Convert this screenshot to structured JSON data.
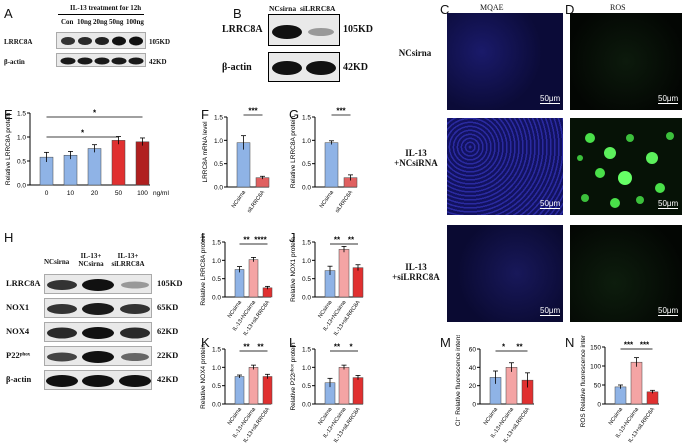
{
  "panels": {
    "A": "A",
    "B": "B",
    "C": "C",
    "D": "D",
    "E": "E",
    "F": "F",
    "G": "G",
    "H": "H",
    "I": "I",
    "J": "J",
    "K": "K",
    "L": "L",
    "M": "M",
    "N": "N"
  },
  "panelA": {
    "title": "IL-13 treatment for 12h",
    "lanes": [
      "Con",
      "10ng",
      "20ng",
      "50ng",
      "100ng"
    ],
    "rows": [
      {
        "name": "LRRC8A",
        "kd": "105KD"
      },
      {
        "name": "β-actin",
        "kd": "42KD"
      }
    ]
  },
  "panelB": {
    "lanes": [
      "NCsirna",
      "siLRRC8A"
    ],
    "rows": [
      {
        "name": "LRRC8A",
        "kd": "105KD"
      },
      {
        "name": "β-actin",
        "kd": "42KD"
      }
    ]
  },
  "panelCD": {
    "col_headers": [
      "MQAE",
      "ROS"
    ],
    "row_labels": [
      [
        "NCsirna"
      ],
      [
        "IL-13",
        "+NCsiRNA"
      ],
      [
        "IL-13",
        "+siLRRC8A"
      ]
    ],
    "scale": "50μm"
  },
  "panelH": {
    "lanes": [
      [
        "NCsirna"
      ],
      [
        "IL-13+",
        "NCsirna"
      ],
      [
        "IL-13+",
        "siLRRC8A"
      ]
    ],
    "rows": [
      {
        "name": "LRRC8A",
        "kd": "105KD"
      },
      {
        "name": "NOX1",
        "kd": "65KD"
      },
      {
        "name": "NOX4",
        "kd": "62KD"
      },
      {
        "name": "P22ᵖʰᵒˣ",
        "kd": "22KD"
      },
      {
        "name": "β-actin",
        "kd": "42KD"
      }
    ]
  },
  "chart_data": [
    {
      "id": "E",
      "type": "bar",
      "ylabel": "Relative LRRC8A protein",
      "xlabel": "ng/ml",
      "categories": [
        "0",
        "10",
        "20",
        "50",
        "100"
      ],
      "values": [
        0.58,
        0.62,
        0.76,
        0.93,
        0.9
      ],
      "errors": [
        0.1,
        0.08,
        0.08,
        0.08,
        0.08
      ],
      "ylim": [
        0,
        1.5
      ],
      "yticks": [
        "0.0",
        "0.5",
        "1.0",
        "1.5"
      ],
      "colors": [
        "#8fb3e6",
        "#8fb3e6",
        "#8fb3e6",
        "#e03030",
        "#b02020"
      ],
      "sig": [
        "*",
        "*"
      ]
    },
    {
      "id": "F",
      "type": "bar",
      "ylabel": "LRRC8A mRNA level",
      "categories": [
        "NCsirna",
        "siLRRC8A"
      ],
      "values": [
        0.95,
        0.2
      ],
      "errors": [
        0.15,
        0.03
      ],
      "ylim": [
        0,
        1.5
      ],
      "yticks": [
        "0.0",
        "0.5",
        "1.0",
        "1.5"
      ],
      "colors": [
        "#8fb3e6",
        "#e06060"
      ],
      "sig": [
        "***"
      ]
    },
    {
      "id": "G",
      "type": "bar",
      "ylabel": "Relative LRRC8A protein",
      "categories": [
        "NCsirna",
        "siLRRC8A"
      ],
      "values": [
        0.95,
        0.2
      ],
      "errors": [
        0.04,
        0.06
      ],
      "ylim": [
        0,
        1.5
      ],
      "yticks": [
        "0.0",
        "0.5",
        "1.0",
        "1.5"
      ],
      "colors": [
        "#8fb3e6",
        "#e06060"
      ],
      "sig": [
        "***"
      ]
    },
    {
      "id": "I",
      "type": "bar",
      "ylabel": "Relative LRRC8A protein",
      "categories": [
        "NCsirna",
        "IL-13+NCsirna",
        "IL-13+siLRRC8A"
      ],
      "values": [
        0.75,
        1.02,
        0.25
      ],
      "errors": [
        0.08,
        0.06,
        0.04
      ],
      "ylim": [
        0,
        1.5
      ],
      "yticks": [
        "0.0",
        "0.5",
        "1.0",
        "1.5"
      ],
      "colors": [
        "#8fb3e6",
        "#f4a4a4",
        "#e03030"
      ],
      "sig": [
        "**",
        "****"
      ]
    },
    {
      "id": "J",
      "type": "bar",
      "ylabel": "Relative NOX1 protein",
      "categories": [
        "NCsirna",
        "IL-13+NCsirna",
        "IL-13+siLRRC8A"
      ],
      "values": [
        0.72,
        1.3,
        0.8
      ],
      "errors": [
        0.12,
        0.08,
        0.08
      ],
      "ylim": [
        0,
        1.5
      ],
      "yticks": [
        "0.0",
        "0.5",
        "1.0",
        "1.5"
      ],
      "colors": [
        "#8fb3e6",
        "#f4a4a4",
        "#e03030"
      ],
      "sig": [
        "**",
        "**"
      ]
    },
    {
      "id": "K",
      "type": "bar",
      "ylabel": "Relative NOX4 protein",
      "categories": [
        "NCsirna",
        "IL-13+NCsirna",
        "IL-13+siLRRC8A"
      ],
      "values": [
        0.75,
        1.0,
        0.75
      ],
      "errors": [
        0.04,
        0.06,
        0.06
      ],
      "ylim": [
        0,
        1.5
      ],
      "yticks": [
        "0.0",
        "0.5",
        "1.0",
        "1.5"
      ],
      "colors": [
        "#8fb3e6",
        "#f4a4a4",
        "#e03030"
      ],
      "sig": [
        "**",
        "**"
      ]
    },
    {
      "id": "L",
      "type": "bar",
      "ylabel": "Relative P22ᵖʰᵒˣ protein",
      "categories": [
        "NCsirna",
        "IL-13+NCsirna",
        "IL-13+siLRRC8A"
      ],
      "values": [
        0.58,
        1.0,
        0.72
      ],
      "errors": [
        0.12,
        0.06,
        0.06
      ],
      "ylim": [
        0,
        1.5
      ],
      "yticks": [
        "0.0",
        "0.5",
        "1.0",
        "1.5"
      ],
      "colors": [
        "#8fb3e6",
        "#f4a4a4",
        "#e03030"
      ],
      "sig": [
        "**",
        "*"
      ]
    },
    {
      "id": "M",
      "type": "bar",
      "ylabel": "Cl⁻ Relative fluorescence intensity",
      "categories": [
        "NCsirna",
        "IL-13+NCsirna",
        "IL-13+siLRRC8A"
      ],
      "values": [
        29,
        40,
        26
      ],
      "errors": [
        7,
        5,
        8
      ],
      "ylim": [
        0,
        60
      ],
      "yticks": [
        "0",
        "20",
        "40",
        "60"
      ],
      "colors": [
        "#8fb3e6",
        "#f4a4a4",
        "#e03030"
      ],
      "sig": [
        "*",
        "**"
      ]
    },
    {
      "id": "N",
      "type": "bar",
      "ylabel": "ROS Relative fluorescence intensity",
      "categories": [
        "NCsirna",
        "IL-13+NCsirna",
        "IL-13+siLRRC8A"
      ],
      "values": [
        45,
        110,
        32
      ],
      "errors": [
        5,
        12,
        4
      ],
      "ylim": [
        0,
        150
      ],
      "yticks": [
        "0",
        "50",
        "100",
        "150"
      ],
      "colors": [
        "#8fb3e6",
        "#f4a4a4",
        "#e03030"
      ],
      "sig": [
        "***",
        "***"
      ]
    }
  ]
}
